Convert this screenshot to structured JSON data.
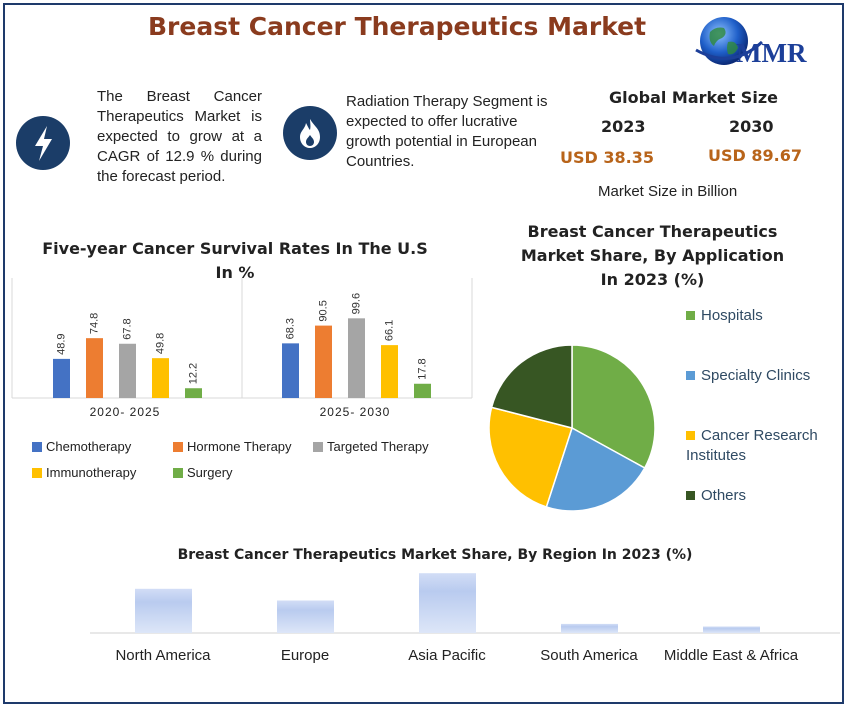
{
  "title": "Breast Cancer Therapeutics Market",
  "logo": {
    "text": "MMR"
  },
  "info_cards": [
    {
      "icon": "lightning-bolt-icon",
      "text": "The Breast Cancer Therapeutics Market is expected to grow at a CAGR of 12.9 % during the forecast period."
    },
    {
      "icon": "flame-icon",
      "text": "Radiation Therapy Segment is expected to offer lucrative growth potential in European Countries."
    }
  ],
  "market_size": {
    "title": "Global Market Size",
    "year_a": "2023",
    "year_b": "2030",
    "value_a": "USD 38.35",
    "value_b": "USD 89.67",
    "note": "Market Size in Billion"
  },
  "colors": {
    "accent": "#8a3b1e",
    "frame": "#1e3a6b",
    "chemotherapy": "#4472c4",
    "hormone_therapy": "#ed7d31",
    "targeted_therapy": "#a5a5a5",
    "immunotherapy": "#ffc000",
    "surgery": "#70ad47",
    "hospitals": "#70ad47",
    "specialty_clinics": "#5b9bd5",
    "cancer_research": "#ffc000",
    "others": "#375623"
  },
  "chart_data": [
    {
      "type": "bar",
      "title": "Five-year Cancer Survival Rates In The U.S In %",
      "categories": [
        "2020- 2025",
        "2025- 2030"
      ],
      "series": [
        {
          "name": "Chemotherapy",
          "values": [
            48.9,
            68.3
          ]
        },
        {
          "name": "Hormone Therapy",
          "values": [
            74.8,
            90.5
          ]
        },
        {
          "name": "Targeted Therapy",
          "values": [
            67.8,
            99.6
          ]
        },
        {
          "name": "Immunotherapy",
          "values": [
            49.8,
            66.1
          ]
        },
        {
          "name": "Surgery",
          "values": [
            12.2,
            17.8
          ]
        }
      ],
      "legend_position": "bottom"
    },
    {
      "type": "pie",
      "title": "Breast Cancer Therapeutics Market Share, By Application In 2023 (%)",
      "labels": [
        "Hospitals",
        "Specialty Clinics",
        "Cancer Research Institutes",
        "Others"
      ],
      "values": [
        33,
        22,
        24,
        21
      ],
      "legend_position": "right"
    },
    {
      "type": "bar",
      "title": "Breast Cancer Therapeutics Market Share, By Region In 2023 (%)",
      "categories": [
        "North America",
        "Europe",
        "Asia Pacific",
        "South America",
        "Middle East & Africa"
      ],
      "values": [
        34,
        25,
        46,
        7,
        5
      ],
      "legend_position": "none"
    }
  ]
}
